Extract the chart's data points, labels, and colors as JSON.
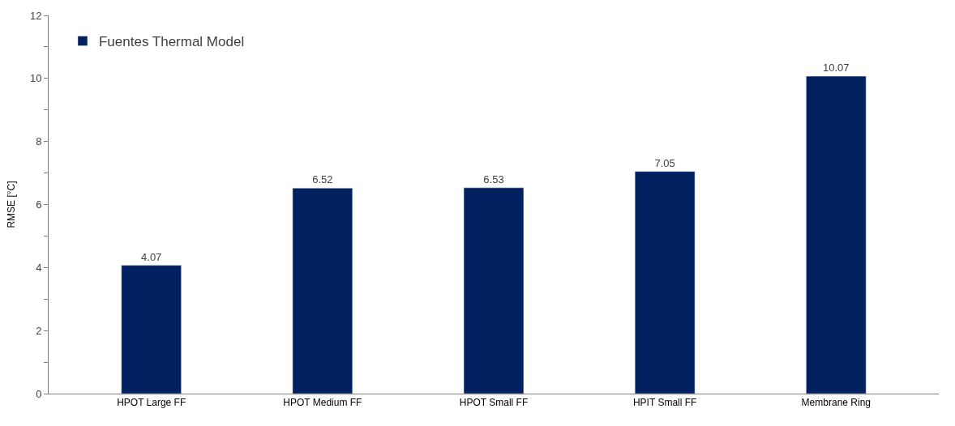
{
  "chart_data": {
    "type": "bar",
    "ylabel": "RMSE [°C]",
    "categories": [
      "HPOT Large FF",
      "HPOT Medium FF",
      "HPOT Small FF",
      "HPIT Small FF",
      "Membrane Ring"
    ],
    "series": [
      {
        "name": "Fuentes Thermal Model",
        "color": "#002060",
        "values": [
          4.07,
          6.52,
          6.53,
          7.05,
          10.07
        ]
      }
    ],
    "ylim": [
      0,
      12
    ],
    "yticks": [
      0,
      {
        "value": 1,
        "label": null
      },
      2,
      {
        "value": 3,
        "label": null
      },
      4,
      {
        "value": 5,
        "label": null
      },
      6,
      {
        "value": 7,
        "label": null
      },
      8,
      {
        "value": 9,
        "label": null
      },
      10,
      {
        "value": 11,
        "label": null
      },
      12
    ],
    "data_labels": true,
    "grid": false,
    "legend": "top left"
  }
}
